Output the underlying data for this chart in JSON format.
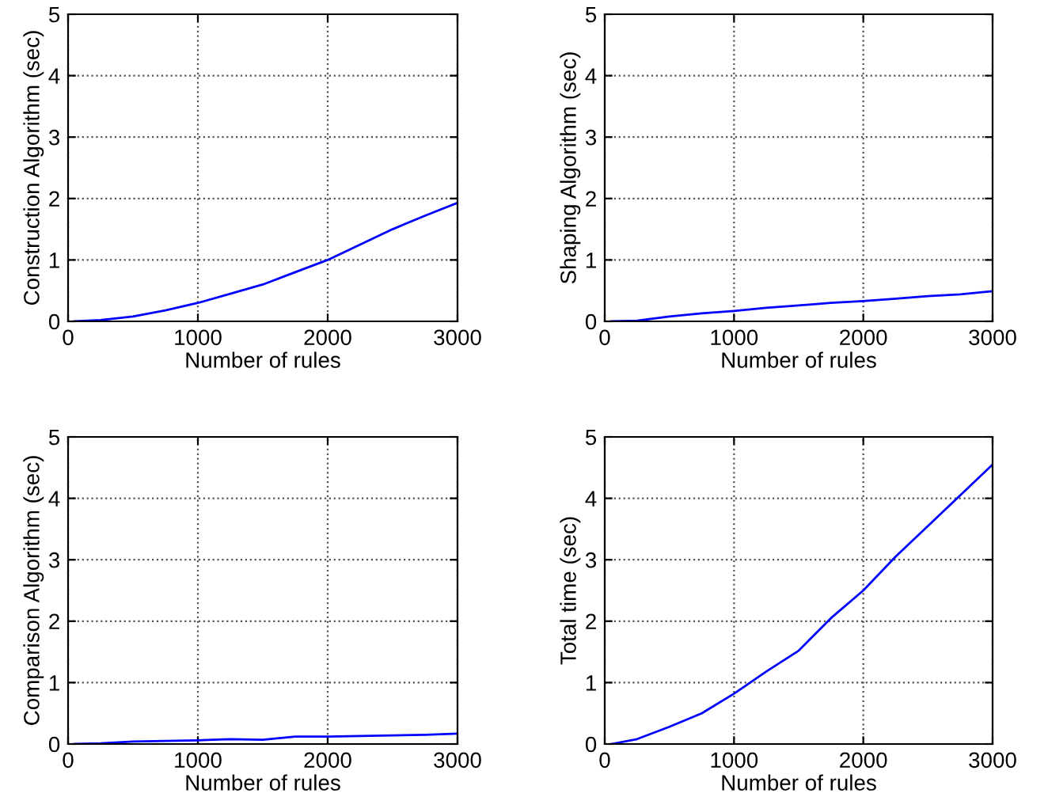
{
  "chart_data": [
    {
      "type": "line",
      "xlabel": "Number of rules",
      "ylabel": "Construction Algorithm (sec)",
      "x": [
        50,
        250,
        500,
        750,
        1000,
        1250,
        1500,
        1750,
        2000,
        2250,
        2500,
        2750,
        3000
      ],
      "series": [
        {
          "color": "#0000ff",
          "values": [
            0,
            0.02,
            0.08,
            0.18,
            0.3,
            0.45,
            0.6,
            0.8,
            1.0,
            1.25,
            1.5,
            1.72,
            1.93
          ]
        }
      ],
      "xlim": [
        0,
        3000
      ],
      "ylim": [
        0,
        5
      ],
      "xticks": [
        0,
        1000,
        2000,
        3000
      ],
      "yticks": [
        0,
        1,
        2,
        3,
        4,
        5
      ],
      "grid": true,
      "line_style": "solid"
    },
    {
      "type": "line",
      "xlabel": "Number of rules",
      "ylabel": "Shaping Algorithm (sec)",
      "x": [
        50,
        250,
        500,
        750,
        1000,
        1250,
        1500,
        1750,
        2000,
        2250,
        2500,
        2750,
        3000
      ],
      "series": [
        {
          "color": "#0000ff",
          "values": [
            0,
            0.01,
            0.08,
            0.13,
            0.17,
            0.22,
            0.26,
            0.3,
            0.33,
            0.37,
            0.41,
            0.44,
            0.49
          ]
        }
      ],
      "xlim": [
        0,
        3000
      ],
      "ylim": [
        0,
        5
      ],
      "xticks": [
        0,
        1000,
        2000,
        3000
      ],
      "yticks": [
        0,
        1,
        2,
        3,
        4,
        5
      ],
      "grid": true,
      "line_style": "solid"
    },
    {
      "type": "line",
      "xlabel": "Number of rules",
      "ylabel": "Comparison Algorithm (sec)",
      "x": [
        50,
        250,
        500,
        750,
        1000,
        1250,
        1500,
        1750,
        2000,
        2250,
        2500,
        2750,
        3000
      ],
      "series": [
        {
          "color": "#0000ff",
          "values": [
            0,
            0.01,
            0.04,
            0.05,
            0.06,
            0.08,
            0.07,
            0.12,
            0.12,
            0.13,
            0.14,
            0.15,
            0.17
          ]
        }
      ],
      "xlim": [
        0,
        3000
      ],
      "ylim": [
        0,
        5
      ],
      "xticks": [
        0,
        1000,
        2000,
        3000
      ],
      "yticks": [
        0,
        1,
        2,
        3,
        4,
        5
      ],
      "grid": true,
      "line_style": "solid"
    },
    {
      "type": "line",
      "xlabel": "Number of rules",
      "ylabel": "Total time (sec)",
      "x": [
        50,
        250,
        500,
        750,
        1000,
        1250,
        1500,
        1750,
        2000,
        2250,
        2500,
        2750,
        3000
      ],
      "series": [
        {
          "color": "#0000ff",
          "values": [
            0,
            0.08,
            0.28,
            0.5,
            0.82,
            1.18,
            1.52,
            2.05,
            2.5,
            3.05,
            3.55,
            4.05,
            4.55
          ]
        }
      ],
      "xlim": [
        0,
        3000
      ],
      "ylim": [
        0,
        5
      ],
      "xticks": [
        0,
        1000,
        2000,
        3000
      ],
      "yticks": [
        0,
        1,
        2,
        3,
        4,
        5
      ],
      "grid": true,
      "line_style": "solid"
    }
  ]
}
